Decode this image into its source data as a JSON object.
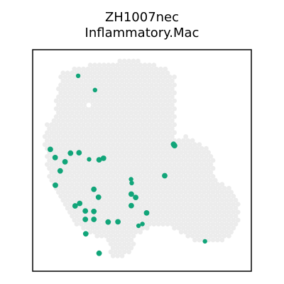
{
  "chart_data": {
    "type": "scatter",
    "title_line1": "ZH1007nec",
    "title_line2": "Inflammatory.Mac",
    "xlabel": "",
    "ylabel": "",
    "axes_visible": false,
    "grid": false,
    "legend": "none",
    "xlim": [
      0,
      100
    ],
    "ylim": [
      0,
      100
    ],
    "tissue_color": "#ececec",
    "highlight_color": "#11a579",
    "frame_color": "#000000",
    "highlight_points": [
      {
        "x": 20.8,
        "y": 88.2,
        "s": "s"
      },
      {
        "x": 28.5,
        "y": 81.8,
        "s": "s"
      },
      {
        "x": 64.4,
        "y": 57.3,
        "s": "m"
      },
      {
        "x": 64.7,
        "y": 56.9,
        "s": "m"
      },
      {
        "x": 64.9,
        "y": 56.7,
        "s": "m"
      },
      {
        "x": 8.1,
        "y": 55.0,
        "s": "m"
      },
      {
        "x": 10.3,
        "y": 51.3,
        "s": "m"
      },
      {
        "x": 17.3,
        "y": 53.3,
        "s": "m"
      },
      {
        "x": 21.2,
        "y": 53.5,
        "s": "m"
      },
      {
        "x": 25.8,
        "y": 50.5,
        "s": "s"
      },
      {
        "x": 30.4,
        "y": 50.3,
        "s": "m"
      },
      {
        "x": 32.4,
        "y": 51.0,
        "s": "m"
      },
      {
        "x": 14.8,
        "y": 49.4,
        "s": "m"
      },
      {
        "x": 12.6,
        "y": 45.3,
        "s": "m"
      },
      {
        "x": 45.0,
        "y": 41.5,
        "s": "s"
      },
      {
        "x": 45.3,
        "y": 39.8,
        "s": "s"
      },
      {
        "x": 60.4,
        "y": 43.1,
        "s": "m"
      },
      {
        "x": 10.4,
        "y": 38.8,
        "s": "m"
      },
      {
        "x": 28.0,
        "y": 37.0,
        "s": "m"
      },
      {
        "x": 30.1,
        "y": 33.4,
        "s": "m"
      },
      {
        "x": 45.1,
        "y": 34.8,
        "s": "m"
      },
      {
        "x": 47.1,
        "y": 33.3,
        "s": "m"
      },
      {
        "x": 19.4,
        "y": 29.5,
        "s": "m"
      },
      {
        "x": 21.5,
        "y": 30.6,
        "s": "m"
      },
      {
        "x": 24.1,
        "y": 27.2,
        "s": "m"
      },
      {
        "x": 24.1,
        "y": 23.4,
        "s": "m"
      },
      {
        "x": 28.0,
        "y": 27.0,
        "s": "m"
      },
      {
        "x": 28.0,
        "y": 23.4,
        "s": "m"
      },
      {
        "x": 45.1,
        "y": 29.6,
        "s": "m"
      },
      {
        "x": 52.1,
        "y": 26.3,
        "s": "m"
      },
      {
        "x": 34.5,
        "y": 22.2,
        "s": "m"
      },
      {
        "x": 39.0,
        "y": 22.3,
        "s": "m"
      },
      {
        "x": 48.4,
        "y": 20.5,
        "s": "s"
      },
      {
        "x": 50.2,
        "y": 21.3,
        "s": "s"
      },
      {
        "x": 24.3,
        "y": 16.9,
        "s": "m"
      },
      {
        "x": 30.4,
        "y": 8.1,
        "s": "m"
      },
      {
        "x": 78.8,
        "y": 13.5,
        "s": "s"
      }
    ]
  }
}
